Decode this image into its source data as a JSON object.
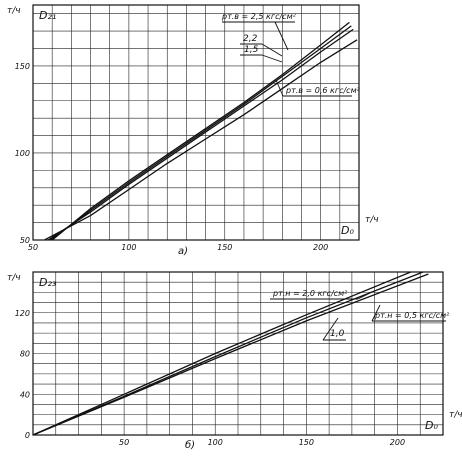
{
  "chart_data": [
    {
      "type": "line",
      "panel": "a)",
      "corner_label": "D₂₁",
      "xlabel": "D₀",
      "x_unit": "т/ч",
      "y_unit": "т/ч",
      "xlim": [
        50,
        220
      ],
      "ylim": [
        50,
        185
      ],
      "x_ticks": [
        50,
        100,
        150,
        200
      ],
      "y_ticks": [
        50,
        100,
        150
      ],
      "grid": true,
      "series": [
        {
          "name": "pт.в = 2,5 кгс/см²",
          "x": [
            60,
            80,
            100,
            120,
            140,
            160,
            180,
            200,
            215
          ],
          "y": [
            50,
            68,
            84,
            99,
            114,
            129,
            145,
            162,
            175
          ]
        },
        {
          "name": "2,2",
          "x": [
            59,
            80,
            100,
            120,
            140,
            160,
            180,
            200,
            216
          ],
          "y": [
            50,
            67,
            83,
            98,
            113,
            128,
            144,
            160,
            173
          ]
        },
        {
          "name": "1,5",
          "x": [
            58,
            80,
            100,
            120,
            140,
            160,
            180,
            200,
            217
          ],
          "y": [
            50,
            66,
            82,
            97,
            112,
            127,
            142,
            158,
            171
          ]
        },
        {
          "name": "pт.в = 0,6 кгс/см²",
          "x": [
            56,
            80,
            100,
            120,
            140,
            160,
            180,
            200,
            219
          ],
          "y": [
            50,
            64,
            79,
            94,
            108,
            122,
            137,
            152,
            165
          ]
        }
      ]
    },
    {
      "type": "line",
      "panel": "б)",
      "corner_label": "D₂₃",
      "xlabel": "D₀",
      "x_unit": "т/ч",
      "y_unit": "т/ч",
      "xlim": [
        0,
        225
      ],
      "ylim": [
        0,
        160
      ],
      "x_ticks": [
        50,
        100,
        150,
        200
      ],
      "y_ticks": [
        0,
        40,
        80,
        120
      ],
      "grid": true,
      "series": [
        {
          "name": "pт.н = 2,0 кгс/см²",
          "x": [
            0,
            50,
            100,
            150,
            210
          ],
          "y": [
            0,
            40,
            80,
            118,
            162
          ]
        },
        {
          "name": "1,0",
          "x": [
            0,
            50,
            100,
            150,
            214
          ],
          "y": [
            0,
            38,
            77,
            115,
            160
          ]
        },
        {
          "name": "pт.н = 0,5 кгс/см²",
          "x": [
            0,
            50,
            100,
            150,
            217
          ],
          "y": [
            0,
            37,
            75,
            112,
            158
          ]
        }
      ]
    }
  ],
  "labels": {
    "a_top": "pт.в = 2,5 кгс/см²",
    "a_22": "2,2",
    "a_15": "1,5",
    "a_06": "pт.в = 0,6 кгс/см²",
    "b_20": "pт.н = 2,0 кгс/см²",
    "b_05": "pт.н = 0,5 кгс/см²",
    "b_10": "1,0"
  }
}
